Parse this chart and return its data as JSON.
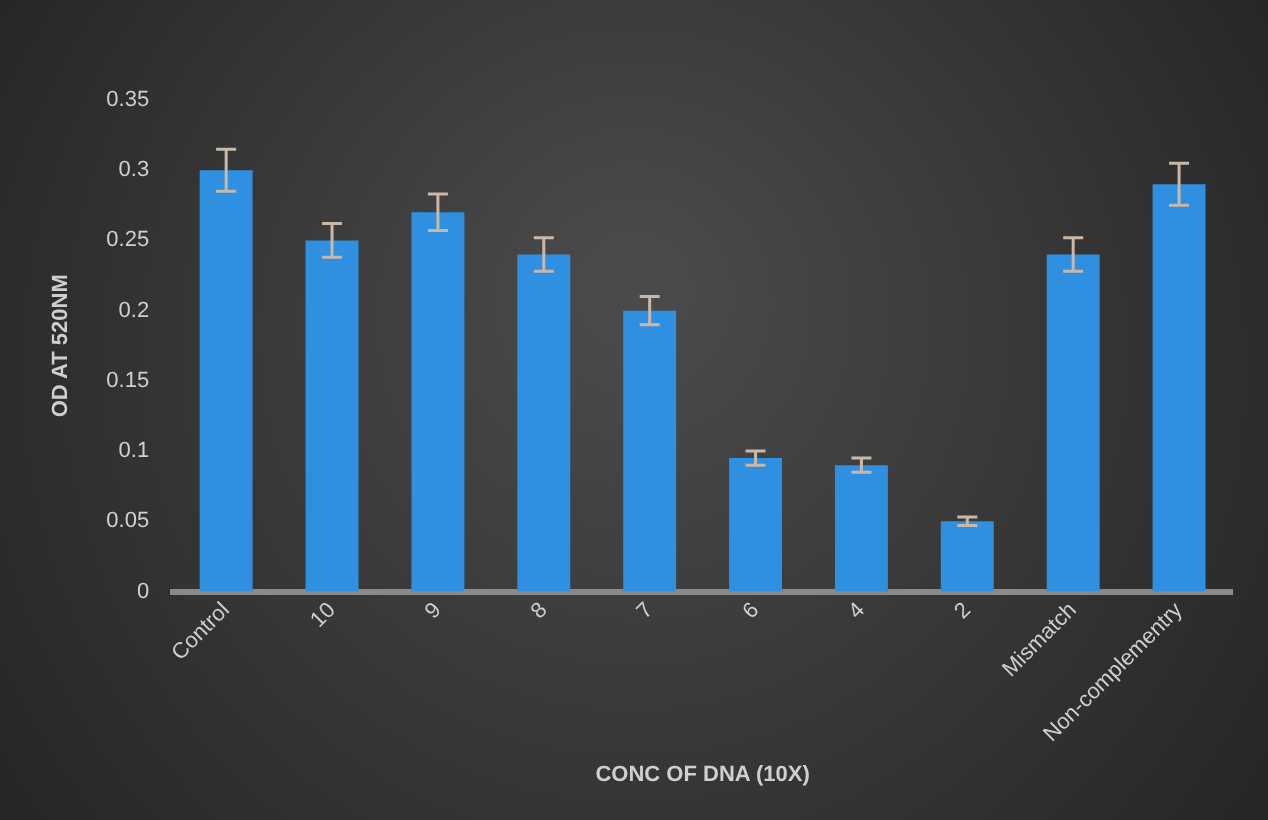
{
  "chart_data": {
    "type": "bar",
    "xlabel": "CONC OF DNA (10X)",
    "ylabel": "OD AT 520NM",
    "categories": [
      "Control",
      "10",
      "9",
      "8",
      "7",
      "6",
      "4",
      "2",
      "Mismatch",
      "Non-complementry"
    ],
    "values": [
      0.3,
      0.25,
      0.27,
      0.24,
      0.2,
      0.095,
      0.09,
      0.05,
      0.24,
      0.29
    ],
    "errors": [
      0.015,
      0.012,
      0.013,
      0.012,
      0.01,
      0.005,
      0.005,
      0.003,
      0.012,
      0.015
    ],
    "color": "#2f8fe0",
    "ylim": [
      0,
      0.35
    ],
    "yticks": [
      0,
      0.05,
      0.1,
      0.15,
      0.2,
      0.25,
      0.3,
      0.35
    ],
    "grid": false
  }
}
